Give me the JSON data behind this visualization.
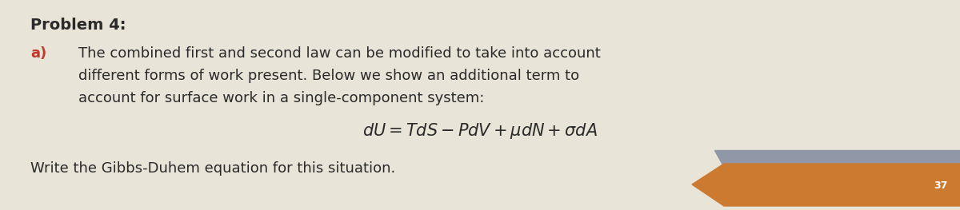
{
  "background_color": "#e8e4d8",
  "title": "Problem 4:",
  "title_fontsize": 14,
  "label_a_color": "#c0392b",
  "label_a_text": "a)",
  "body_text_line1": "The combined first and second law can be modified to take into account",
  "body_text_line2": "different forms of work present. Below we show an additional term to",
  "body_text_line3": "account for surface work in a single-component system:",
  "equation": "$dU = TdS - PdV + \\mu dN + \\sigma dA$",
  "footer_text": "Write the Gibbs-Duhem equation for this situation.",
  "page_number": "37",
  "orange_color": "#cc7a30",
  "shadow_color": "#9098a8",
  "text_color": "#2a2a2a",
  "fig_width": 12.0,
  "fig_height": 2.63,
  "dpi": 100,
  "body_fontsize": 13.0,
  "eq_fontsize": 15.0
}
